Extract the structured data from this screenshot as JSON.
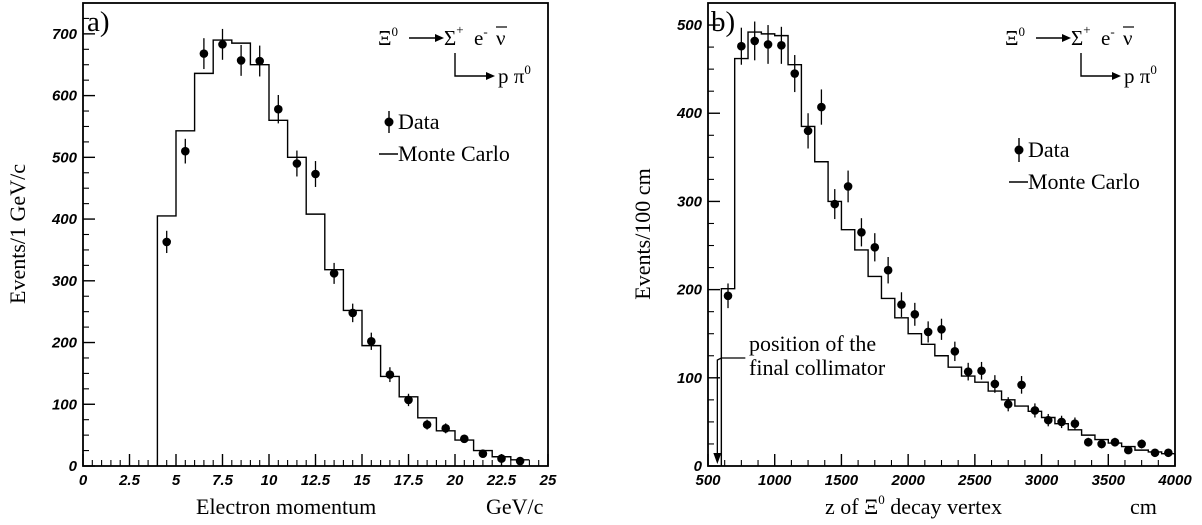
{
  "chart_data": [
    {
      "type": "histogram",
      "panel_label": "a)",
      "xlabel": "Electron momentum",
      "xunit": "GeV/c",
      "ylabel": "Events/1 GeV/c",
      "xlim": [
        0,
        25
      ],
      "ylim": [
        0,
        750
      ],
      "xticks": [
        "0",
        "2.5",
        "5",
        "7.5",
        "10",
        "12.5",
        "15",
        "17.5",
        "20",
        "22.5",
        "25"
      ],
      "xtick_values": [
        0,
        2.5,
        5,
        7.5,
        10,
        12.5,
        15,
        17.5,
        20,
        22.5,
        25
      ],
      "yticks": [
        "0",
        "100",
        "200",
        "300",
        "400",
        "500",
        "600",
        "700"
      ],
      "ytick_values": [
        0,
        100,
        200,
        300,
        400,
        500,
        600,
        700
      ],
      "decay": {
        "parent": "Ξ",
        "parent_sup": "0",
        "daughter": "Σ",
        "daughter_sup": "+",
        "lepton": "e",
        "lepton_sup": "-",
        "neutrino": "ν",
        "secondary": "p π",
        "secondary_sup": "0"
      },
      "legend": {
        "data": "Data",
        "mc": "Monte Carlo"
      },
      "monte_carlo": {
        "bin_edges": [
          4,
          5,
          6,
          7,
          8,
          9,
          10,
          11,
          12,
          13,
          14,
          15,
          16,
          17,
          18,
          19,
          20,
          21,
          22,
          23,
          24
        ],
        "values": [
          405,
          543,
          636,
          690,
          685,
          650,
          560,
          500,
          408,
          318,
          252,
          195,
          145,
          112,
          78,
          57,
          42,
          25,
          15,
          10
        ]
      },
      "data": {
        "x": [
          4.5,
          5.5,
          6.5,
          7.5,
          8.5,
          9.5,
          10.5,
          11.5,
          12.5,
          13.5,
          14.5,
          15.5,
          16.5,
          17.5,
          18.5,
          19.5,
          20.5,
          21.5,
          22.5,
          23.5
        ],
        "y": [
          363,
          510,
          668,
          683,
          657,
          656,
          578,
          490,
          473,
          312,
          248,
          202,
          148,
          107,
          67,
          61,
          44,
          20,
          12,
          8
        ],
        "err": [
          18,
          20,
          25,
          25,
          25,
          25,
          23,
          21,
          21,
          17,
          15,
          14,
          12,
          10,
          8,
          8,
          6,
          4,
          3,
          3
        ]
      }
    },
    {
      "type": "histogram",
      "panel_label": "b)",
      "xlabel": "z of Ξ",
      "xlabel_sup": "0",
      "xlabel_rest": " decay vertex",
      "xunit": "cm",
      "ylabel": "Events/100 cm",
      "xlim": [
        500,
        4000
      ],
      "ylim": [
        0,
        525
      ],
      "xticks": [
        "500",
        "1000",
        "1500",
        "2000",
        "2500",
        "3000",
        "3500",
        "4000"
      ],
      "xtick_values": [
        500,
        1000,
        1500,
        2000,
        2500,
        3000,
        3500,
        4000
      ],
      "yticks": [
        "0",
        "100",
        "200",
        "300",
        "400",
        "500"
      ],
      "ytick_values": [
        0,
        100,
        200,
        300,
        400,
        500
      ],
      "decay": {
        "parent": "Ξ",
        "parent_sup": "0",
        "daughter": "Σ",
        "daughter_sup": "+",
        "lepton": "e",
        "lepton_sup": "-",
        "neutrino": "ν",
        "secondary": "p π",
        "secondary_sup": "0"
      },
      "legend": {
        "data": "Data",
        "mc": "Monte Carlo"
      },
      "annotation": {
        "line1": "position of the",
        "line2": "final collimator",
        "x": 570
      },
      "monte_carlo": {
        "bin_edges": [
          600,
          700,
          800,
          900,
          1000,
          1100,
          1200,
          1300,
          1400,
          1500,
          1600,
          1700,
          1800,
          1900,
          2000,
          2100,
          2200,
          2300,
          2400,
          2500,
          2600,
          2700,
          2800,
          2900,
          3000,
          3100,
          3200,
          3300,
          3400,
          3500,
          3600,
          3700,
          3800,
          3900,
          4000
        ],
        "values": [
          201,
          462,
          492,
          490,
          488,
          455,
          385,
          345,
          300,
          268,
          245,
          215,
          190,
          168,
          150,
          138,
          125,
          112,
          102,
          95,
          85,
          75,
          68,
          62,
          55,
          48,
          41,
          35,
          30,
          26,
          22,
          18,
          16,
          14
        ]
      },
      "data": {
        "x": [
          650,
          750,
          850,
          950,
          1050,
          1150,
          1250,
          1350,
          1450,
          1550,
          1650,
          1750,
          1850,
          1950,
          2050,
          2150,
          2250,
          2350,
          2450,
          2550,
          2650,
          2750,
          2850,
          2950,
          3050,
          3150,
          3250,
          3350,
          3450,
          3550,
          3650,
          3750,
          3850,
          3950
        ],
        "y": [
          193,
          476,
          482,
          478,
          477,
          445,
          380,
          407,
          297,
          317,
          265,
          248,
          222,
          183,
          172,
          152,
          155,
          130,
          107,
          108,
          93,
          70,
          92,
          63,
          52,
          50,
          48,
          27,
          25,
          27,
          18,
          25,
          15,
          15
        ],
        "err": [
          14,
          21,
          22,
          22,
          21,
          21,
          20,
          20,
          17,
          18,
          16,
          16,
          15,
          14,
          13,
          12,
          12,
          11,
          10,
          10,
          10,
          8,
          10,
          8,
          7,
          7,
          7,
          5,
          5,
          5,
          4,
          5,
          4,
          4
        ]
      }
    }
  ]
}
